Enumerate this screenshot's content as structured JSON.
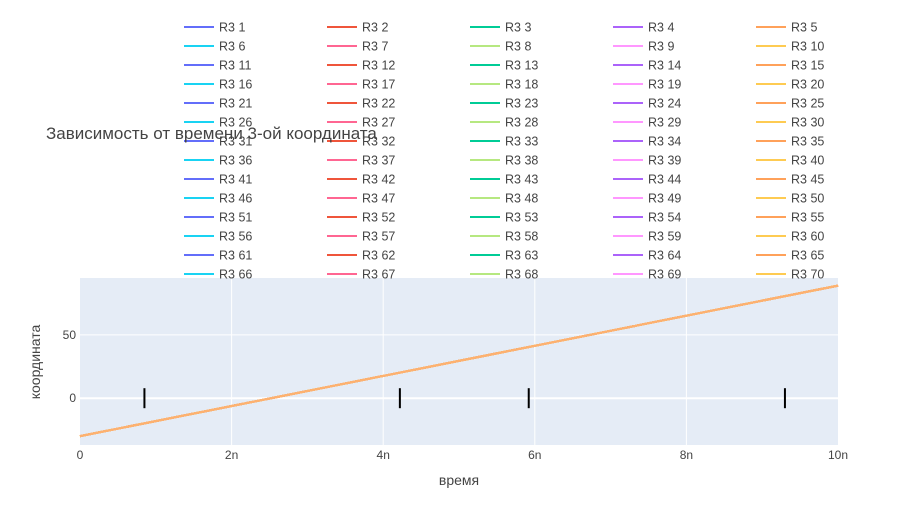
{
  "chart_data": {
    "type": "line",
    "title": "Зависимость от времени 3-ой координата",
    "xlabel": "время",
    "ylabel": "координата",
    "xlim": [
      0,
      10
    ],
    "ylim": [
      -37,
      95
    ],
    "x_ticks": [
      {
        "value": 0,
        "label": "0"
      },
      {
        "value": 2,
        "label": "2n"
      },
      {
        "value": 4,
        "label": "4n"
      },
      {
        "value": 6,
        "label": "6n"
      },
      {
        "value": 8,
        "label": "8n"
      },
      {
        "value": 10,
        "label": "10n"
      }
    ],
    "y_ticks": [
      {
        "value": 0,
        "label": "0"
      },
      {
        "value": 50,
        "label": "50"
      }
    ],
    "grid": true,
    "legend_placement": "top",
    "plot_background": "#e5ecf6",
    "line_color": "#fdb170",
    "series_count": 70,
    "series_colors": [
      "#636efa",
      "#ef553b",
      "#00cc96",
      "#ab63fa",
      "#ffa15a",
      "#19d3f3",
      "#ff6692",
      "#b6e880",
      "#ff97ff",
      "#fecb52"
    ],
    "series": [
      {
        "name": "R3 1",
        "x": [
          0,
          10
        ],
        "y": [
          -30,
          89
        ]
      },
      {
        "name": "R3 2",
        "x": [
          0,
          10
        ],
        "y": [
          -30,
          89
        ]
      },
      {
        "name": "R3 3",
        "x": [
          0,
          10
        ],
        "y": [
          -30,
          89
        ]
      },
      {
        "name": "R3 4",
        "x": [
          0,
          10
        ],
        "y": [
          -30,
          89
        ]
      },
      {
        "name": "R3 5",
        "x": [
          0,
          10
        ],
        "y": [
          -30,
          89
        ]
      },
      {
        "name": "R3 6",
        "x": [
          0,
          10
        ],
        "y": [
          -30,
          89
        ]
      },
      {
        "name": "R3 7",
        "x": [
          0,
          10
        ],
        "y": [
          -30,
          89
        ]
      },
      {
        "name": "R3 8",
        "x": [
          0,
          10
        ],
        "y": [
          -30,
          89
        ]
      },
      {
        "name": "R3 9",
        "x": [
          0,
          10
        ],
        "y": [
          -30,
          89
        ]
      },
      {
        "name": "R3 10",
        "x": [
          0,
          10
        ],
        "y": [
          -30,
          89
        ]
      },
      {
        "name": "R3 11",
        "x": [
          0,
          10
        ],
        "y": [
          -30,
          89
        ]
      },
      {
        "name": "R3 12",
        "x": [
          0,
          10
        ],
        "y": [
          -30,
          89
        ]
      },
      {
        "name": "R3 13",
        "x": [
          0,
          10
        ],
        "y": [
          -30,
          89
        ]
      },
      {
        "name": "R3 14",
        "x": [
          0,
          10
        ],
        "y": [
          -30,
          89
        ]
      },
      {
        "name": "R3 15",
        "x": [
          0,
          10
        ],
        "y": [
          -30,
          89
        ]
      },
      {
        "name": "R3 16",
        "x": [
          0,
          10
        ],
        "y": [
          -30,
          89
        ]
      },
      {
        "name": "R3 17",
        "x": [
          0,
          10
        ],
        "y": [
          -30,
          89
        ]
      },
      {
        "name": "R3 18",
        "x": [
          0,
          10
        ],
        "y": [
          -30,
          89
        ]
      },
      {
        "name": "R3 19",
        "x": [
          0,
          10
        ],
        "y": [
          -30,
          89
        ]
      },
      {
        "name": "R3 20",
        "x": [
          0,
          10
        ],
        "y": [
          -30,
          89
        ]
      },
      {
        "name": "R3 21",
        "x": [
          0,
          10
        ],
        "y": [
          -30,
          89
        ]
      },
      {
        "name": "R3 22",
        "x": [
          0,
          10
        ],
        "y": [
          -30,
          89
        ]
      },
      {
        "name": "R3 23",
        "x": [
          0,
          10
        ],
        "y": [
          -30,
          89
        ]
      },
      {
        "name": "R3 24",
        "x": [
          0,
          10
        ],
        "y": [
          -30,
          89
        ]
      },
      {
        "name": "R3 25",
        "x": [
          0,
          10
        ],
        "y": [
          -30,
          89
        ]
      },
      {
        "name": "R3 26",
        "x": [
          0,
          10
        ],
        "y": [
          -30,
          89
        ]
      },
      {
        "name": "R3 27",
        "x": [
          0,
          10
        ],
        "y": [
          -30,
          89
        ]
      },
      {
        "name": "R3 28",
        "x": [
          0,
          10
        ],
        "y": [
          -30,
          89
        ]
      },
      {
        "name": "R3 29",
        "x": [
          0,
          10
        ],
        "y": [
          -30,
          89
        ]
      },
      {
        "name": "R3 30",
        "x": [
          0,
          10
        ],
        "y": [
          -30,
          89
        ]
      },
      {
        "name": "R3 31",
        "x": [
          0,
          10
        ],
        "y": [
          -30,
          89
        ]
      },
      {
        "name": "R3 32",
        "x": [
          0,
          10
        ],
        "y": [
          -30,
          89
        ]
      },
      {
        "name": "R3 33",
        "x": [
          0,
          10
        ],
        "y": [
          -30,
          89
        ]
      },
      {
        "name": "R3 34",
        "x": [
          0,
          10
        ],
        "y": [
          -30,
          89
        ]
      },
      {
        "name": "R3 35",
        "x": [
          0,
          10
        ],
        "y": [
          -30,
          89
        ]
      },
      {
        "name": "R3 36",
        "x": [
          0,
          10
        ],
        "y": [
          -30,
          89
        ]
      },
      {
        "name": "R3 37",
        "x": [
          0,
          10
        ],
        "y": [
          -30,
          89
        ]
      },
      {
        "name": "R3 38",
        "x": [
          0,
          10
        ],
        "y": [
          -30,
          89
        ]
      },
      {
        "name": "R3 39",
        "x": [
          0,
          10
        ],
        "y": [
          -30,
          89
        ]
      },
      {
        "name": "R3 40",
        "x": [
          0,
          10
        ],
        "y": [
          -30,
          89
        ]
      },
      {
        "name": "R3 41",
        "x": [
          0,
          10
        ],
        "y": [
          -30,
          89
        ]
      },
      {
        "name": "R3 42",
        "x": [
          0,
          10
        ],
        "y": [
          -30,
          89
        ]
      },
      {
        "name": "R3 43",
        "x": [
          0,
          10
        ],
        "y": [
          -30,
          89
        ]
      },
      {
        "name": "R3 44",
        "x": [
          0,
          10
        ],
        "y": [
          -30,
          89
        ]
      },
      {
        "name": "R3 45",
        "x": [
          0,
          10
        ],
        "y": [
          -30,
          89
        ]
      },
      {
        "name": "R3 46",
        "x": [
          0,
          10
        ],
        "y": [
          -30,
          89
        ]
      },
      {
        "name": "R3 47",
        "x": [
          0,
          10
        ],
        "y": [
          -30,
          89
        ]
      },
      {
        "name": "R3 48",
        "x": [
          0,
          10
        ],
        "y": [
          -30,
          89
        ]
      },
      {
        "name": "R3 49",
        "x": [
          0,
          10
        ],
        "y": [
          -30,
          89
        ]
      },
      {
        "name": "R3 50",
        "x": [
          0,
          10
        ],
        "y": [
          -30,
          89
        ]
      },
      {
        "name": "R3 51",
        "x": [
          0,
          10
        ],
        "y": [
          -30,
          89
        ]
      },
      {
        "name": "R3 52",
        "x": [
          0,
          10
        ],
        "y": [
          -30,
          89
        ]
      },
      {
        "name": "R3 53",
        "x": [
          0,
          10
        ],
        "y": [
          -30,
          89
        ]
      },
      {
        "name": "R3 54",
        "x": [
          0,
          10
        ],
        "y": [
          -30,
          89
        ]
      },
      {
        "name": "R3 55",
        "x": [
          0,
          10
        ],
        "y": [
          -30,
          89
        ]
      },
      {
        "name": "R3 56",
        "x": [
          0,
          10
        ],
        "y": [
          -30,
          89
        ]
      },
      {
        "name": "R3 57",
        "x": [
          0,
          10
        ],
        "y": [
          -30,
          89
        ]
      },
      {
        "name": "R3 58",
        "x": [
          0,
          10
        ],
        "y": [
          -30,
          89
        ]
      },
      {
        "name": "R3 59",
        "x": [
          0,
          10
        ],
        "y": [
          -30,
          89
        ]
      },
      {
        "name": "R3 60",
        "x": [
          0,
          10
        ],
        "y": [
          -30,
          89
        ]
      },
      {
        "name": "R3 61",
        "x": [
          0,
          10
        ],
        "y": [
          -30,
          89
        ]
      },
      {
        "name": "R3 62",
        "x": [
          0,
          10
        ],
        "y": [
          -30,
          89
        ]
      },
      {
        "name": "R3 63",
        "x": [
          0,
          10
        ],
        "y": [
          -30,
          89
        ]
      },
      {
        "name": "R3 64",
        "x": [
          0,
          10
        ],
        "y": [
          -30,
          89
        ]
      },
      {
        "name": "R3 65",
        "x": [
          0,
          10
        ],
        "y": [
          -30,
          89
        ]
      },
      {
        "name": "R3 66",
        "x": [
          0,
          10
        ],
        "y": [
          -30,
          89
        ]
      },
      {
        "name": "R3 67",
        "x": [
          0,
          10
        ],
        "y": [
          -30,
          89
        ]
      },
      {
        "name": "R3 68",
        "x": [
          0,
          10
        ],
        "y": [
          -30,
          89
        ]
      },
      {
        "name": "R3 69",
        "x": [
          0,
          10
        ],
        "y": [
          -30,
          89
        ]
      },
      {
        "name": "R3 70",
        "x": [
          0,
          10
        ],
        "y": [
          -30,
          89
        ]
      }
    ],
    "markers": [
      {
        "x": 0.85,
        "y": 0
      },
      {
        "x": 4.22,
        "y": 0
      },
      {
        "x": 5.92,
        "y": 0
      },
      {
        "x": 9.3,
        "y": 0
      }
    ]
  }
}
